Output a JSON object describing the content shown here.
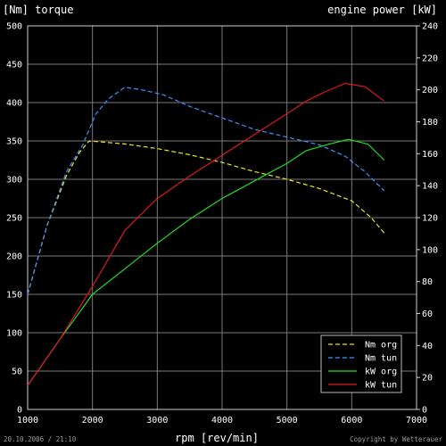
{
  "chart_data": {
    "type": "line",
    "title": "",
    "xlabel": "rpm [rev/min]",
    "ylabel_left": "[Nm] torque",
    "ylabel_right": "engine power [kW]",
    "xlim": [
      1000,
      7000
    ],
    "ylim_left": [
      0,
      500
    ],
    "ylim_right": [
      0,
      240
    ],
    "x_ticks": [
      "1000",
      "2000",
      "3000",
      "4000",
      "5000",
      "6000",
      "7000"
    ],
    "y_left_ticks": [
      "0",
      "50",
      "100",
      "150",
      "200",
      "250",
      "300",
      "350",
      "400",
      "450",
      "500"
    ],
    "y_right_ticks": [
      "0",
      "20",
      "40",
      "60",
      "80",
      "100",
      "120",
      "140",
      "160",
      "180",
      "200",
      "220",
      "240"
    ],
    "grid": true,
    "legend_position": "bottom-right",
    "series": [
      {
        "name": "Nm org",
        "axis": "left",
        "color": "#e8e820",
        "dash": true,
        "x": [
          1000,
          1300,
          1600,
          1800,
          1950,
          2100,
          2500,
          3000,
          3500,
          4000,
          4500,
          5000,
          5500,
          6000,
          6300,
          6500
        ],
        "y": [
          150,
          240,
          305,
          335,
          350,
          349,
          346,
          340,
          332,
          322,
          310,
          300,
          288,
          272,
          250,
          230
        ]
      },
      {
        "name": "Nm tun",
        "axis": "left",
        "color": "#3f8fff",
        "dash": true,
        "x": [
          1000,
          1300,
          1600,
          1850,
          2050,
          2250,
          2500,
          2800,
          3100,
          3500,
          4000,
          4500,
          5000,
          5500,
          5900,
          6200,
          6500
        ],
        "y": [
          150,
          240,
          310,
          345,
          385,
          405,
          420,
          416,
          410,
          395,
          380,
          365,
          355,
          345,
          330,
          310,
          285
        ]
      },
      {
        "name": "kW org",
        "axis": "right",
        "color": "#22dd22",
        "dash": false,
        "x": [
          1000,
          1500,
          2000,
          2500,
          3000,
          3500,
          4000,
          4500,
          5000,
          5300,
          5650,
          5950,
          6250,
          6500
        ],
        "y": [
          15,
          44,
          72,
          88,
          104,
          119,
          132,
          143,
          154,
          162,
          166,
          169,
          166,
          156
        ]
      },
      {
        "name": "kW tun",
        "axis": "right",
        "color": "#dd1a1a",
        "dash": false,
        "x": [
          1000,
          1500,
          2000,
          2500,
          3000,
          3500,
          4000,
          4500,
          5000,
          5300,
          5600,
          5900,
          6200,
          6500
        ],
        "y": [
          15,
          44,
          77,
          112,
          132,
          146,
          159,
          172,
          185,
          193,
          199,
          204,
          202,
          193
        ]
      }
    ]
  },
  "footer": {
    "date": "20.10.2006 / 21:10",
    "copyright": "Copyright by Wetterauer"
  }
}
